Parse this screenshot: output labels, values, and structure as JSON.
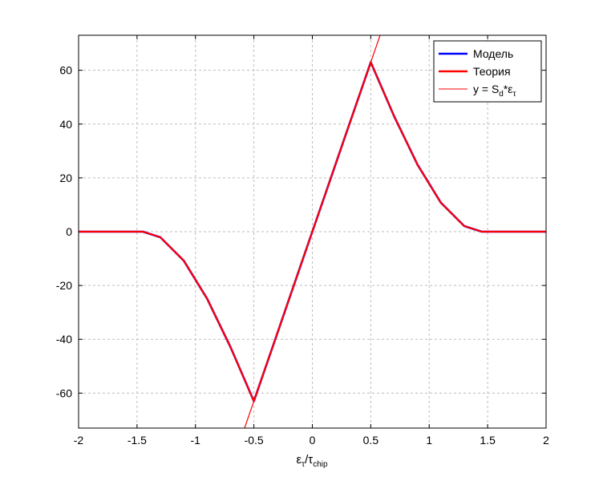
{
  "chart_data": {
    "type": "line",
    "title": "",
    "xlabel": {
      "main": "ε",
      "sub1": "τ",
      "mid": "/τ",
      "sub2": "chip"
    },
    "ylabel": "",
    "xlim": [
      -2,
      2
    ],
    "ylim": [
      -73,
      73
    ],
    "grid": true,
    "legend_position": "top-right",
    "x_ticks": [
      -2,
      -1.5,
      -1,
      -0.5,
      0,
      0.5,
      1,
      1.5,
      2
    ],
    "x_tick_labels": [
      "-2",
      "-1.5",
      "-1",
      "-0.5",
      "0",
      "0.5",
      "1",
      "1.5",
      "2"
    ],
    "y_ticks": [
      -60,
      -40,
      -20,
      0,
      20,
      40,
      60
    ],
    "y_tick_labels": [
      "-60",
      "-40",
      "-20",
      "0",
      "20",
      "40",
      "60"
    ],
    "series": [
      {
        "name": "Модель",
        "color": "#0000ff",
        "x": [
          -2.0,
          -1.5,
          -1.45,
          -1.3,
          -1.1,
          -0.9,
          -0.7,
          -0.5,
          -0.3,
          -0.1,
          0.0,
          0.1,
          0.3,
          0.5,
          0.7,
          0.9,
          1.1,
          1.3,
          1.45,
          1.5,
          2.0
        ],
        "y": [
          0,
          0,
          0,
          -2.1,
          -10.8,
          -24.9,
          -42.9,
          -63,
          -37.8,
          -12.6,
          0,
          12.6,
          37.8,
          63,
          42.9,
          24.9,
          10.8,
          2.1,
          0,
          0,
          0
        ]
      },
      {
        "name": "Теория",
        "color": "#ff0000",
        "x": [
          -2.0,
          -1.5,
          -1.45,
          -1.3,
          -1.1,
          -0.9,
          -0.7,
          -0.5,
          -0.3,
          -0.1,
          0.0,
          0.1,
          0.3,
          0.5,
          0.7,
          0.9,
          1.1,
          1.3,
          1.45,
          1.5,
          2.0
        ],
        "y": [
          0,
          0,
          0,
          -2.1,
          -10.8,
          -24.9,
          -42.9,
          -63,
          -37.8,
          -12.6,
          0,
          12.6,
          37.8,
          63,
          42.9,
          24.9,
          10.8,
          2.1,
          0,
          0,
          0
        ]
      },
      {
        "name_parts": {
          "pre": "y = S",
          "sub1": "d",
          "mid": "*ε",
          "sub2": "τ"
        },
        "color": "#ff0000",
        "x": [
          -0.58,
          0.58
        ],
        "y": [
          -73,
          73
        ]
      }
    ]
  }
}
